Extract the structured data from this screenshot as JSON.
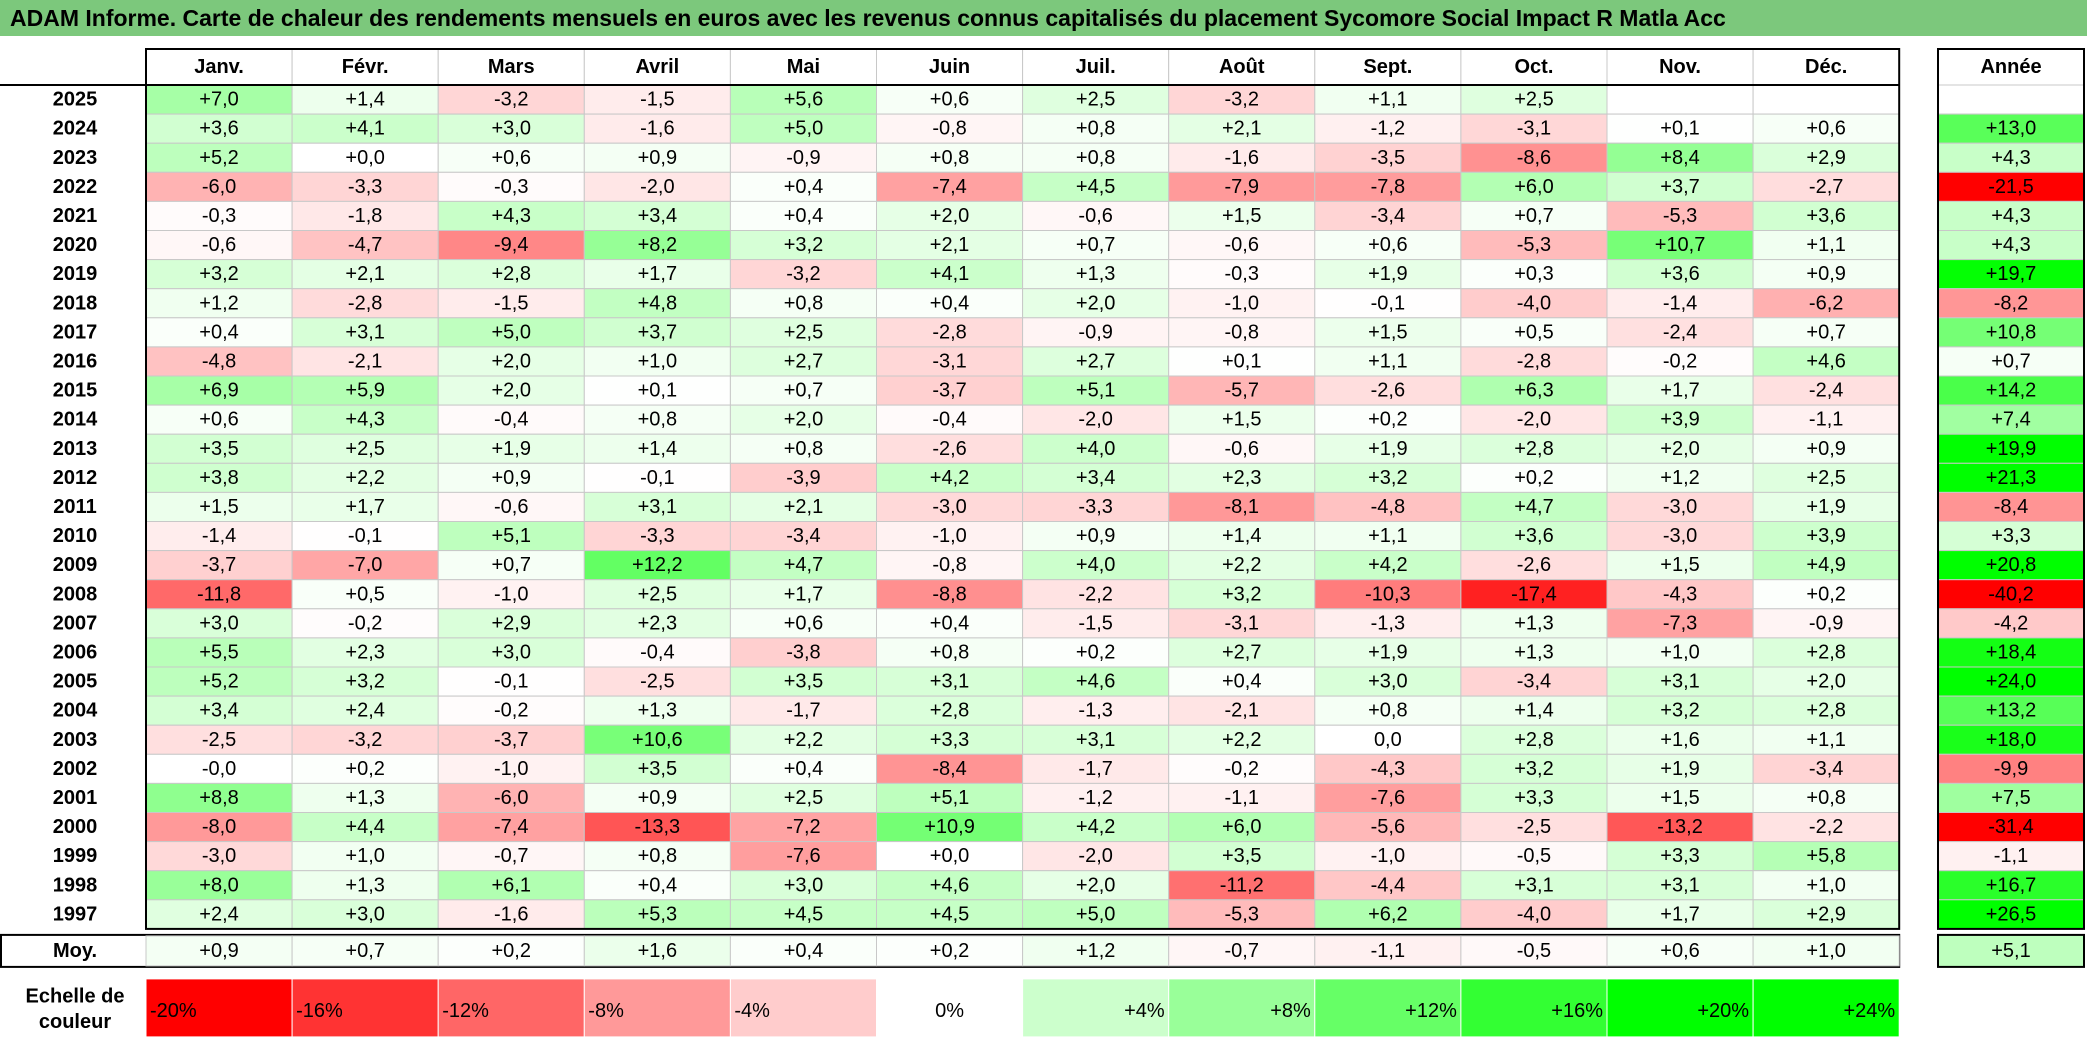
{
  "title": "ADAM Informe. Carte de chaleur des rendements mensuels en euros avec les revenus connus capitalisés du placement Sycomore Social Impact R Matla Acc",
  "chart_data": {
    "type": "heatmap",
    "columns": [
      "Janv.",
      "Févr.",
      "Mars",
      "Avril",
      "Mai",
      "Juin",
      "Juil.",
      "Août",
      "Sept.",
      "Oct.",
      "Nov.",
      "Déc."
    ],
    "year_column": "Année",
    "rows": [
      {
        "year": "2025",
        "months": [
          "+7,0",
          "+1,4",
          "-3,2",
          "-1,5",
          "+5,6",
          "+0,6",
          "+2,5",
          "-3,2",
          "+1,1",
          "+2,5",
          "",
          ""
        ],
        "annual": ""
      },
      {
        "year": "2024",
        "months": [
          "+3,6",
          "+4,1",
          "+3,0",
          "-1,6",
          "+5,0",
          "-0,8",
          "+0,8",
          "+2,1",
          "-1,2",
          "-3,1",
          "+0,1",
          "+0,6"
        ],
        "annual": "+13,0"
      },
      {
        "year": "2023",
        "months": [
          "+5,2",
          "+0,0",
          "+0,6",
          "+0,9",
          "-0,9",
          "+0,8",
          "+0,8",
          "-1,6",
          "-3,5",
          "-8,6",
          "+8,4",
          "+2,9"
        ],
        "annual": "+4,3"
      },
      {
        "year": "2022",
        "months": [
          "-6,0",
          "-3,3",
          "-0,3",
          "-2,0",
          "+0,4",
          "-7,4",
          "+4,5",
          "-7,9",
          "-7,8",
          "+6,0",
          "+3,7",
          "-2,7"
        ],
        "annual": "-21,5"
      },
      {
        "year": "2021",
        "months": [
          "-0,3",
          "-1,8",
          "+4,3",
          "+3,4",
          "+0,4",
          "+2,0",
          "-0,6",
          "+1,5",
          "-3,4",
          "+0,7",
          "-5,3",
          "+3,6"
        ],
        "annual": "+4,3"
      },
      {
        "year": "2020",
        "months": [
          "-0,6",
          "-4,7",
          "-9,4",
          "+8,2",
          "+3,2",
          "+2,1",
          "+0,7",
          "-0,6",
          "+0,6",
          "-5,3",
          "+10,7",
          "+1,1"
        ],
        "annual": "+4,3"
      },
      {
        "year": "2019",
        "months": [
          "+3,2",
          "+2,1",
          "+2,8",
          "+1,7",
          "-3,2",
          "+4,1",
          "+1,3",
          "-0,3",
          "+1,9",
          "+0,3",
          "+3,6",
          "+0,9"
        ],
        "annual": "+19,7"
      },
      {
        "year": "2018",
        "months": [
          "+1,2",
          "-2,8",
          "-1,5",
          "+4,8",
          "+0,8",
          "+0,4",
          "+2,0",
          "-1,0",
          "-0,1",
          "-4,0",
          "-1,4",
          "-6,2"
        ],
        "annual": "-8,2"
      },
      {
        "year": "2017",
        "months": [
          "+0,4",
          "+3,1",
          "+5,0",
          "+3,7",
          "+2,5",
          "-2,8",
          "-0,9",
          "-0,8",
          "+1,5",
          "+0,5",
          "-2,4",
          "+0,7"
        ],
        "annual": "+10,8"
      },
      {
        "year": "2016",
        "months": [
          "-4,8",
          "-2,1",
          "+2,0",
          "+1,0",
          "+2,7",
          "-3,1",
          "+2,7",
          "+0,1",
          "+1,1",
          "-2,8",
          "-0,2",
          "+4,6"
        ],
        "annual": "+0,7"
      },
      {
        "year": "2015",
        "months": [
          "+6,9",
          "+5,9",
          "+2,0",
          "+0,1",
          "+0,7",
          "-3,7",
          "+5,1",
          "-5,7",
          "-2,6",
          "+6,3",
          "+1,7",
          "-2,4"
        ],
        "annual": "+14,2"
      },
      {
        "year": "2014",
        "months": [
          "+0,6",
          "+4,3",
          "-0,4",
          "+0,8",
          "+2,0",
          "-0,4",
          "-2,0",
          "+1,5",
          "+0,2",
          "-2,0",
          "+3,9",
          "-1,1"
        ],
        "annual": "+7,4"
      },
      {
        "year": "2013",
        "months": [
          "+3,5",
          "+2,5",
          "+1,9",
          "+1,4",
          "+0,8",
          "-2,6",
          "+4,0",
          "-0,6",
          "+1,9",
          "+2,8",
          "+2,0",
          "+0,9"
        ],
        "annual": "+19,9"
      },
      {
        "year": "2012",
        "months": [
          "+3,8",
          "+2,2",
          "+0,9",
          "-0,1",
          "-3,9",
          "+4,2",
          "+3,4",
          "+2,3",
          "+3,2",
          "+0,2",
          "+1,2",
          "+2,5"
        ],
        "annual": "+21,3"
      },
      {
        "year": "2011",
        "months": [
          "+1,5",
          "+1,7",
          "-0,6",
          "+3,1",
          "+2,1",
          "-3,0",
          "-3,3",
          "-8,1",
          "-4,8",
          "+4,7",
          "-3,0",
          "+1,9"
        ],
        "annual": "-8,4"
      },
      {
        "year": "2010",
        "months": [
          "-1,4",
          "-0,1",
          "+5,1",
          "-3,3",
          "-3,4",
          "-1,0",
          "+0,9",
          "+1,4",
          "+1,1",
          "+3,6",
          "-3,0",
          "+3,9"
        ],
        "annual": "+3,3"
      },
      {
        "year": "2009",
        "months": [
          "-3,7",
          "-7,0",
          "+0,7",
          "+12,2",
          "+4,7",
          "-0,8",
          "+4,0",
          "+2,2",
          "+4,2",
          "-2,6",
          "+1,5",
          "+4,9"
        ],
        "annual": "+20,8"
      },
      {
        "year": "2008",
        "months": [
          "-11,8",
          "+0,5",
          "-1,0",
          "+2,5",
          "+1,7",
          "-8,8",
          "-2,2",
          "+3,2",
          "-10,3",
          "-17,4",
          "-4,3",
          "+0,2"
        ],
        "annual": "-40,2"
      },
      {
        "year": "2007",
        "months": [
          "+3,0",
          "-0,2",
          "+2,9",
          "+2,3",
          "+0,6",
          "+0,4",
          "-1,5",
          "-3,1",
          "-1,3",
          "+1,3",
          "-7,3",
          "-0,9"
        ],
        "annual": "-4,2"
      },
      {
        "year": "2006",
        "months": [
          "+5,5",
          "+2,3",
          "+3,0",
          "-0,4",
          "-3,8",
          "+0,8",
          "+0,2",
          "+2,7",
          "+1,9",
          "+1,3",
          "+1,0",
          "+2,8"
        ],
        "annual": "+18,4"
      },
      {
        "year": "2005",
        "months": [
          "+5,2",
          "+3,2",
          "-0,1",
          "-2,5",
          "+3,5",
          "+3,1",
          "+4,6",
          "+0,4",
          "+3,0",
          "-3,4",
          "+3,1",
          "+2,0"
        ],
        "annual": "+24,0"
      },
      {
        "year": "2004",
        "months": [
          "+3,4",
          "+2,4",
          "-0,2",
          "+1,3",
          "-1,7",
          "+2,8",
          "-1,3",
          "-2,1",
          "+0,8",
          "+1,4",
          "+3,2",
          "+2,8"
        ],
        "annual": "+13,2"
      },
      {
        "year": "2003",
        "months": [
          "-2,5",
          "-3,2",
          "-3,7",
          "+10,6",
          "+2,2",
          "+3,3",
          "+3,1",
          "+2,2",
          "0,0",
          "+2,8",
          "+1,6",
          "+1,1"
        ],
        "annual": "+18,0"
      },
      {
        "year": "2002",
        "months": [
          "-0,0",
          "+0,2",
          "-1,0",
          "+3,5",
          "+0,4",
          "-8,4",
          "-1,7",
          "-0,2",
          "-4,3",
          "+3,2",
          "+1,9",
          "-3,4"
        ],
        "annual": "-9,9"
      },
      {
        "year": "2001",
        "months": [
          "+8,8",
          "+1,3",
          "-6,0",
          "+0,9",
          "+2,5",
          "+5,1",
          "-1,2",
          "-1,1",
          "-7,6",
          "+3,3",
          "+1,5",
          "+0,8"
        ],
        "annual": "+7,5"
      },
      {
        "year": "2000",
        "months": [
          "-8,0",
          "+4,4",
          "-7,4",
          "-13,3",
          "-7,2",
          "+10,9",
          "+4,2",
          "+6,0",
          "-5,6",
          "-2,5",
          "-13,2",
          "-2,2"
        ],
        "annual": "-31,4"
      },
      {
        "year": "1999",
        "months": [
          "-3,0",
          "+1,0",
          "-0,7",
          "+0,8",
          "-7,6",
          "+0,0",
          "-2,0",
          "+3,5",
          "-1,0",
          "-0,5",
          "+3,3",
          "+5,8"
        ],
        "annual": "-1,1"
      },
      {
        "year": "1998",
        "months": [
          "+8,0",
          "+1,3",
          "+6,1",
          "+0,4",
          "+3,0",
          "+4,6",
          "+2,0",
          "-11,2",
          "-4,4",
          "+3,1",
          "+3,1",
          "+1,0"
        ],
        "annual": "+16,7"
      },
      {
        "year": "1997",
        "months": [
          "+2,4",
          "+3,0",
          "-1,6",
          "+5,3",
          "+4,5",
          "+4,5",
          "+5,0",
          "-5,3",
          "+6,2",
          "-4,0",
          "+1,7",
          "+2,9"
        ],
        "annual": "+26,5"
      }
    ],
    "average_row": {
      "label": "Moy.",
      "months": [
        "+0,9",
        "+0,7",
        "+0,2",
        "+1,6",
        "+0,4",
        "+0,2",
        "+1,2",
        "-0,7",
        "-1,1",
        "-0,5",
        "+0,6",
        "+1,0"
      ],
      "annual": "+5,1"
    },
    "legend": {
      "label_line1": "Echelle de",
      "label_line2": "couleur",
      "items": [
        {
          "label": "-20%",
          "value": -20,
          "align": "left"
        },
        {
          "label": "-16%",
          "value": -16,
          "align": "left"
        },
        {
          "label": "-12%",
          "value": -12,
          "align": "left"
        },
        {
          "label": "-8%",
          "value": -8,
          "align": "left"
        },
        {
          "label": "-4%",
          "value": -4,
          "align": "left"
        },
        {
          "label": "0%",
          "value": 0,
          "align": "center"
        },
        {
          "label": "+4%",
          "value": 4,
          "align": "right"
        },
        {
          "label": "+8%",
          "value": 8,
          "align": "right"
        },
        {
          "label": "+12%",
          "value": 12,
          "align": "right"
        },
        {
          "label": "+16%",
          "value": 16,
          "align": "right"
        },
        {
          "label": "+20%",
          "value": 20,
          "align": "right"
        },
        {
          "label": "+24%",
          "value": 24,
          "align": "right"
        }
      ]
    },
    "color_scale": {
      "negative_full": "#ff0000",
      "positive_full": "#00ff00",
      "neutral": "#ffffff",
      "saturation_at": 20
    }
  }
}
